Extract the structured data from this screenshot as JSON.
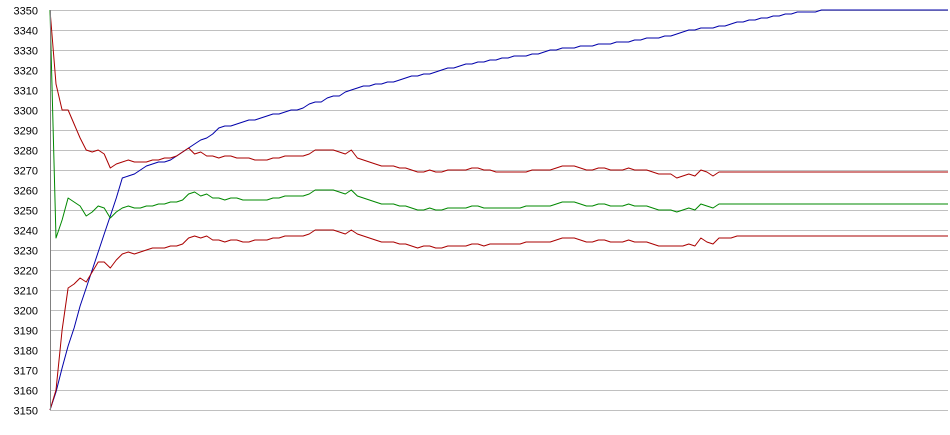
{
  "chart_data": {
    "type": "line",
    "title": "",
    "xlabel": "",
    "ylabel": "",
    "ylim": [
      3150,
      3350
    ],
    "y_ticks": [
      3150,
      3160,
      3170,
      3180,
      3190,
      3200,
      3210,
      3220,
      3230,
      3240,
      3250,
      3260,
      3270,
      3280,
      3290,
      3300,
      3310,
      3320,
      3330,
      3340,
      3350
    ],
    "grid": "horizontal",
    "x": [
      0,
      1,
      2,
      3,
      4,
      5,
      6,
      7,
      8,
      9,
      10,
      11,
      12,
      13,
      14,
      15,
      16,
      17,
      18,
      19,
      20,
      21,
      22,
      23,
      24,
      25,
      26,
      27,
      28,
      29,
      30,
      31,
      32,
      33,
      34,
      35,
      36,
      37,
      38,
      39,
      40,
      41,
      42,
      43,
      44,
      45,
      46,
      47,
      48,
      49,
      50,
      51,
      52,
      53,
      54,
      55,
      56,
      57,
      58,
      59,
      60,
      61,
      62,
      63,
      64,
      65,
      66,
      67,
      68,
      69,
      70,
      71,
      72,
      73,
      74,
      75,
      76,
      77,
      78,
      79,
      80,
      81,
      82,
      83,
      84,
      85,
      86,
      87,
      88,
      89,
      90,
      91,
      92,
      93,
      94,
      95,
      96,
      97,
      98,
      99,
      100,
      101,
      102,
      103,
      104,
      105,
      106,
      107,
      108,
      109,
      110,
      111,
      112,
      113,
      114,
      115,
      116,
      117,
      118,
      119,
      120,
      121,
      122,
      123,
      124,
      125,
      126,
      127,
      128,
      129,
      130,
      131,
      132,
      133,
      134,
      135,
      136,
      137,
      138,
      139,
      140,
      141,
      142,
      143,
      144,
      145,
      146,
      147,
      148,
      149
    ],
    "series": [
      {
        "color": "#0000aa",
        "values": [
          3150,
          3159,
          3171,
          3182,
          3191,
          3202,
          3211,
          3220,
          3229,
          3238,
          3247,
          3256,
          3266,
          3267,
          3268,
          3270,
          3272,
          3273,
          3274,
          3274,
          3275,
          3277,
          3279,
          3281,
          3283,
          3285,
          3286,
          3288,
          3291,
          3292,
          3292,
          3293,
          3294,
          3295,
          3295,
          3296,
          3297,
          3298,
          3298,
          3299,
          3300,
          3300,
          3301,
          3303,
          3304,
          3304,
          3306,
          3307,
          3307,
          3309,
          3310,
          3311,
          3312,
          3312,
          3313,
          3313,
          3314,
          3314,
          3315,
          3316,
          3317,
          3317,
          3318,
          3318,
          3319,
          3320,
          3321,
          3321,
          3322,
          3323,
          3323,
          3324,
          3324,
          3325,
          3325,
          3326,
          3326,
          3327,
          3327,
          3327,
          3328,
          3328,
          3329,
          3330,
          3330,
          3331,
          3331,
          3331,
          3332,
          3332,
          3332,
          3333,
          3333,
          3333,
          3334,
          3334,
          3334,
          3335,
          3335,
          3336,
          3336,
          3336,
          3337,
          3337,
          3338,
          3339,
          3340,
          3340,
          3341,
          3341,
          3341,
          3342,
          3342,
          3343,
          3344,
          3344,
          3345,
          3345,
          3346,
          3346,
          3347,
          3347,
          3348,
          3348,
          3349,
          3349,
          3349,
          3349,
          3350,
          3350,
          3350,
          3350,
          3350,
          3350,
          3350,
          3350,
          3350,
          3350,
          3350,
          3350,
          3350,
          3350,
          3350,
          3350,
          3350,
          3350,
          3350,
          3350,
          3350,
          3350
        ]
      },
      {
        "color": "#aa0000",
        "values": [
          3350,
          3313,
          3300,
          3300,
          3293,
          3286,
          3280,
          3279,
          3280,
          3278,
          3271,
          3273,
          3274,
          3275,
          3274,
          3274,
          3274,
          3275,
          3275,
          3276,
          3276,
          3277,
          3279,
          3281,
          3278,
          3279,
          3277,
          3277,
          3276,
          3277,
          3277,
          3276,
          3276,
          3276,
          3275,
          3275,
          3275,
          3276,
          3276,
          3277,
          3277,
          3277,
          3277,
          3278,
          3280,
          3280,
          3280,
          3280,
          3279,
          3278,
          3280,
          3276,
          3275,
          3274,
          3273,
          3272,
          3272,
          3272,
          3271,
          3271,
          3270,
          3269,
          3269,
          3270,
          3269,
          3269,
          3270,
          3270,
          3270,
          3270,
          3271,
          3271,
          3270,
          3270,
          3269,
          3269,
          3269,
          3269,
          3269,
          3269,
          3270,
          3270,
          3270,
          3270,
          3271,
          3272,
          3272,
          3272,
          3271,
          3270,
          3270,
          3271,
          3271,
          3270,
          3270,
          3270,
          3271,
          3270,
          3270,
          3270,
          3269,
          3268,
          3268,
          3268,
          3266,
          3267,
          3268,
          3267,
          3270,
          3269,
          3267,
          3269,
          3269,
          3269,
          3269,
          3269,
          3269,
          3269,
          3269,
          3269,
          3269,
          3269,
          3269,
          3269,
          3269,
          3269,
          3269,
          3269,
          3269,
          3269,
          3269,
          3269,
          3269,
          3269,
          3269,
          3269,
          3269,
          3269,
          3269,
          3269,
          3269,
          3269,
          3269,
          3269,
          3269,
          3269,
          3269,
          3269,
          3269,
          3269
        ]
      },
      {
        "color": "#008800",
        "values": [
          3350,
          3236,
          3245,
          3256,
          3254,
          3252,
          3247,
          3249,
          3252,
          3251,
          3246,
          3249,
          3251,
          3252,
          3251,
          3251,
          3252,
          3252,
          3253,
          3253,
          3254,
          3254,
          3255,
          3258,
          3259,
          3257,
          3258,
          3256,
          3256,
          3255,
          3256,
          3256,
          3255,
          3255,
          3255,
          3255,
          3255,
          3256,
          3256,
          3257,
          3257,
          3257,
          3257,
          3258,
          3260,
          3260,
          3260,
          3260,
          3259,
          3258,
          3260,
          3257,
          3256,
          3255,
          3254,
          3253,
          3253,
          3253,
          3252,
          3252,
          3251,
          3250,
          3250,
          3251,
          3250,
          3250,
          3251,
          3251,
          3251,
          3251,
          3252,
          3252,
          3251,
          3251,
          3251,
          3251,
          3251,
          3251,
          3251,
          3252,
          3252,
          3252,
          3252,
          3252,
          3253,
          3254,
          3254,
          3254,
          3253,
          3252,
          3252,
          3253,
          3253,
          3252,
          3252,
          3252,
          3253,
          3252,
          3252,
          3252,
          3251,
          3250,
          3250,
          3250,
          3249,
          3250,
          3251,
          3250,
          3253,
          3252,
          3251,
          3253,
          3253,
          3253,
          3253,
          3253,
          3253,
          3253,
          3253,
          3253,
          3253,
          3253,
          3253,
          3253,
          3253,
          3253,
          3253,
          3253,
          3253,
          3253,
          3253,
          3253,
          3253,
          3253,
          3253,
          3253,
          3253,
          3253,
          3253,
          3253,
          3253,
          3253,
          3253,
          3253,
          3253,
          3253,
          3253,
          3253,
          3253,
          3253
        ]
      },
      {
        "color": "#aa0000",
        "values": [
          3150,
          3160,
          3190,
          3211,
          3213,
          3216,
          3214,
          3219,
          3224,
          3224,
          3221,
          3225,
          3228,
          3229,
          3228,
          3229,
          3230,
          3231,
          3231,
          3231,
          3232,
          3232,
          3233,
          3236,
          3237,
          3236,
          3237,
          3235,
          3235,
          3234,
          3235,
          3235,
          3234,
          3234,
          3235,
          3235,
          3235,
          3236,
          3236,
          3237,
          3237,
          3237,
          3237,
          3238,
          3240,
          3240,
          3240,
          3240,
          3239,
          3238,
          3240,
          3238,
          3237,
          3236,
          3235,
          3234,
          3234,
          3234,
          3233,
          3233,
          3232,
          3231,
          3232,
          3232,
          3231,
          3231,
          3232,
          3232,
          3232,
          3232,
          3233,
          3233,
          3232,
          3233,
          3233,
          3233,
          3233,
          3233,
          3233,
          3234,
          3234,
          3234,
          3234,
          3234,
          3235,
          3236,
          3236,
          3236,
          3235,
          3234,
          3234,
          3235,
          3235,
          3234,
          3234,
          3234,
          3235,
          3234,
          3234,
          3234,
          3233,
          3232,
          3232,
          3232,
          3232,
          3232,
          3233,
          3232,
          3236,
          3234,
          3233,
          3236,
          3236,
          3236,
          3237,
          3237,
          3237,
          3237,
          3237,
          3237,
          3237,
          3237,
          3237,
          3237,
          3237,
          3237,
          3237,
          3237,
          3237,
          3237,
          3237,
          3237,
          3237,
          3237,
          3237,
          3237,
          3237,
          3237,
          3237,
          3237,
          3237,
          3237,
          3237,
          3237,
          3237,
          3237,
          3237,
          3237,
          3237,
          3237
        ]
      }
    ]
  }
}
